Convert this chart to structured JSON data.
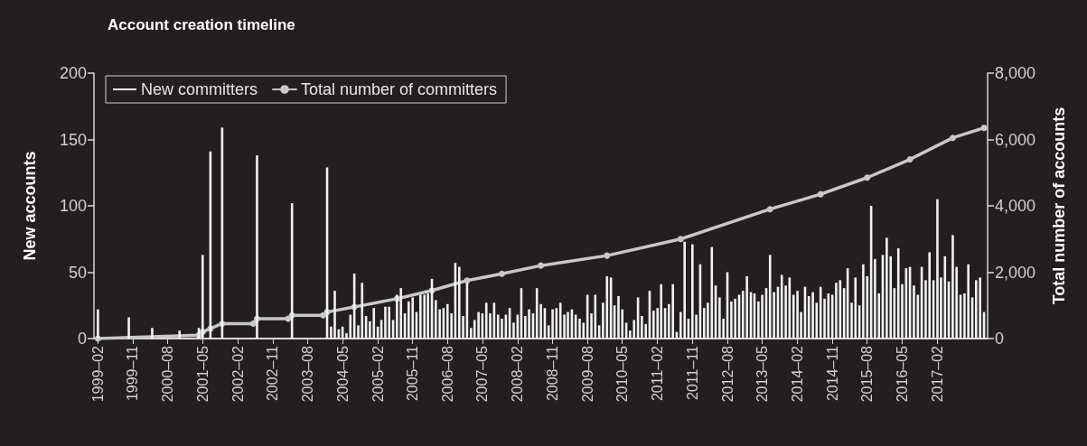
{
  "chart_data": {
    "type": "bar",
    "title": "Account creation timeline",
    "ylabel": "New accounts",
    "y2label": "Total number of accounts",
    "xlim": [
      "1999-01",
      "2018-03"
    ],
    "xticks": [
      {
        "value": "1999-02",
        "label": "1999–02"
      },
      {
        "value": "1999-11",
        "label": "1999–11"
      },
      {
        "value": "2000-08",
        "label": "2000–08"
      },
      {
        "value": "2001-05",
        "label": "2001–05"
      },
      {
        "value": "2002-02",
        "label": "2002–02"
      },
      {
        "value": "2002-11",
        "label": "2002–11"
      },
      {
        "value": "2003-08",
        "label": "2003–08"
      },
      {
        "value": "2004-05",
        "label": "2004–05"
      },
      {
        "value": "2005-02",
        "label": "2005–02"
      },
      {
        "value": "2005-11",
        "label": "2005–11"
      },
      {
        "value": "2006-08",
        "label": "2006–08"
      },
      {
        "value": "2007-05",
        "label": "2007–05"
      },
      {
        "value": "2008-02",
        "label": "2008–02"
      },
      {
        "value": "2008-11",
        "label": "2008–11"
      },
      {
        "value": "2009-08",
        "label": "2009–08"
      },
      {
        "value": "2010-05",
        "label": "2010–05"
      },
      {
        "value": "2011-02",
        "label": "2011–02"
      },
      {
        "value": "2011-11",
        "label": "2011–11"
      },
      {
        "value": "2012-08",
        "label": "2012–08"
      },
      {
        "value": "2013-05",
        "label": "2013–05"
      },
      {
        "value": "2014-02",
        "label": "2014–02"
      },
      {
        "value": "2014-11",
        "label": "2014–11"
      },
      {
        "value": "2015-08",
        "label": "2015–08"
      },
      {
        "value": "2016-05",
        "label": "2016–05"
      },
      {
        "value": "2017-02",
        "label": "2017–02"
      }
    ],
    "ylim": [
      0,
      200
    ],
    "yticks": [
      0,
      50,
      100,
      150,
      200
    ],
    "y2lim": [
      0,
      8000
    ],
    "y2ticks": [
      0,
      {
        "value": 2000,
        "label": "2,000"
      },
      {
        "value": 4000,
        "label": "4,000"
      },
      {
        "value": 6000,
        "label": "6,000"
      },
      {
        "value": 8000,
        "label": "8,000"
      }
    ],
    "legend": "top left",
    "marker": "circle",
    "series": [
      {
        "name": "New committers",
        "color": "#f2f2f2",
        "x": [
          "1999-02",
          "1999-10",
          "2000-04",
          "2000-11",
          "2001-04",
          "2001-05",
          "2001-07",
          "2001-10",
          "2002-07",
          "2003-04",
          "2004-01",
          "2004-02",
          "2004-03",
          "2004-04",
          "2004-05",
          "2004-06",
          "2004-07",
          "2004-08",
          "2004-09",
          "2004-10",
          "2004-11",
          "2004-12",
          "2005-01",
          "2005-02",
          "2005-03",
          "2005-04",
          "2005-05",
          "2005-06",
          "2005-07",
          "2005-08",
          "2005-09",
          "2005-10",
          "2005-11",
          "2005-12",
          "2006-01",
          "2006-02",
          "2006-03",
          "2006-04",
          "2006-05",
          "2006-06",
          "2006-07",
          "2006-08",
          "2006-09",
          "2006-10",
          "2006-11",
          "2006-12",
          "2007-01",
          "2007-02",
          "2007-03",
          "2007-04",
          "2007-05",
          "2007-06",
          "2007-07",
          "2007-08",
          "2007-09",
          "2007-10",
          "2007-11",
          "2007-12",
          "2008-01",
          "2008-02",
          "2008-03",
          "2008-04",
          "2008-05",
          "2008-06",
          "2008-07",
          "2008-08",
          "2008-09",
          "2008-10",
          "2008-11",
          "2008-12",
          "2009-01",
          "2009-02",
          "2009-03",
          "2009-04",
          "2009-05",
          "2009-06",
          "2009-07",
          "2009-08",
          "2009-09",
          "2009-10",
          "2009-11",
          "2009-12",
          "2010-01",
          "2010-02",
          "2010-03",
          "2010-04",
          "2010-05",
          "2010-06",
          "2010-07",
          "2010-08",
          "2010-09",
          "2010-10",
          "2010-11",
          "2010-12",
          "2011-01",
          "2011-02",
          "2011-03",
          "2011-04",
          "2011-05",
          "2011-06",
          "2011-07",
          "2011-08",
          "2011-09",
          "2011-10",
          "2011-11",
          "2011-12",
          "2012-01",
          "2012-02",
          "2012-03",
          "2012-04",
          "2012-05",
          "2012-06",
          "2012-07",
          "2012-08",
          "2012-09",
          "2012-10",
          "2012-11",
          "2012-12",
          "2013-01",
          "2013-02",
          "2013-03",
          "2013-04",
          "2013-05",
          "2013-06",
          "2013-07",
          "2013-08",
          "2013-09",
          "2013-10",
          "2013-11",
          "2013-12",
          "2014-01",
          "2014-02",
          "2014-03",
          "2014-04",
          "2014-05",
          "2014-06",
          "2014-07",
          "2014-08",
          "2014-09",
          "2014-10",
          "2014-11",
          "2014-12",
          "2015-01",
          "2015-02",
          "2015-03",
          "2015-04",
          "2015-05",
          "2015-06",
          "2015-07",
          "2015-08",
          "2015-09",
          "2015-10",
          "2015-11",
          "2015-12",
          "2016-01",
          "2016-02",
          "2016-03",
          "2016-04",
          "2016-05",
          "2016-06",
          "2016-07",
          "2016-08",
          "2016-09",
          "2016-10",
          "2016-11",
          "2016-12",
          "2017-01",
          "2017-02",
          "2017-03",
          "2017-04",
          "2017-05",
          "2017-06",
          "2017-07",
          "2017-08",
          "2017-09",
          "2017-10",
          "2017-11",
          "2017-12",
          "2018-01",
          "2018-02"
        ],
        "values": [
          22,
          16,
          8,
          6,
          8,
          63,
          141,
          159,
          138,
          102,
          129,
          9,
          36,
          7,
          9,
          4,
          18,
          49,
          10,
          42,
          17,
          13,
          23,
          9,
          14,
          24,
          24,
          14,
          33,
          38,
          19,
          28,
          31,
          20,
          33,
          33,
          34,
          45,
          29,
          22,
          23,
          26,
          19,
          57,
          54,
          17,
          42,
          8,
          14,
          20,
          19,
          27,
          19,
          27,
          18,
          15,
          18,
          23,
          12,
          18,
          38,
          17,
          22,
          19,
          38,
          26,
          23,
          10,
          22,
          23,
          27,
          18,
          20,
          22,
          18,
          15,
          12,
          33,
          19,
          33,
          10,
          27,
          47,
          46,
          25,
          32,
          22,
          12,
          6,
          14,
          31,
          17,
          11,
          36,
          21,
          23,
          41,
          23,
          26,
          41,
          5,
          20,
          73,
          15,
          71,
          18,
          56,
          23,
          27,
          69,
          40,
          31,
          15,
          50,
          28,
          30,
          33,
          36,
          47,
          35,
          34,
          28,
          33,
          38,
          63,
          35,
          39,
          48,
          40,
          46,
          33,
          36,
          20,
          39,
          32,
          35,
          27,
          39,
          30,
          34,
          33,
          42,
          44,
          38,
          53,
          27,
          46,
          25,
          56,
          47,
          100,
          60,
          34,
          63,
          76,
          62,
          38,
          68,
          41,
          53,
          54,
          40,
          33,
          54,
          44,
          65,
          44,
          105,
          46,
          62,
          43,
          78,
          54,
          33,
          34,
          56,
          31,
          44,
          46,
          20
        ]
      },
      {
        "name": "Total number of committers",
        "type": "line",
        "axis": "y2",
        "color": "#c8c8c8",
        "x": [
          "1999-02",
          "2001-04",
          "2001-05",
          "2001-07",
          "2001-10",
          "2002-06",
          "2002-07",
          "2003-03",
          "2003-04",
          "2003-12",
          "2004-01",
          "2004-08",
          "2005-07",
          "2006-04",
          "2007-01",
          "2007-10",
          "2008-08",
          "2010-01",
          "2011-08",
          "2013-07",
          "2014-08",
          "2015-08",
          "2016-07",
          "2017-06",
          "2018-02"
        ],
        "values": [
          0,
          100,
          200,
          300,
          450,
          450,
          600,
          600,
          700,
          700,
          800,
          950,
          1200,
          1450,
          1750,
          1950,
          2200,
          2500,
          3000,
          3900,
          4350,
          4850,
          5400,
          6050,
          6350
        ]
      }
    ]
  }
}
